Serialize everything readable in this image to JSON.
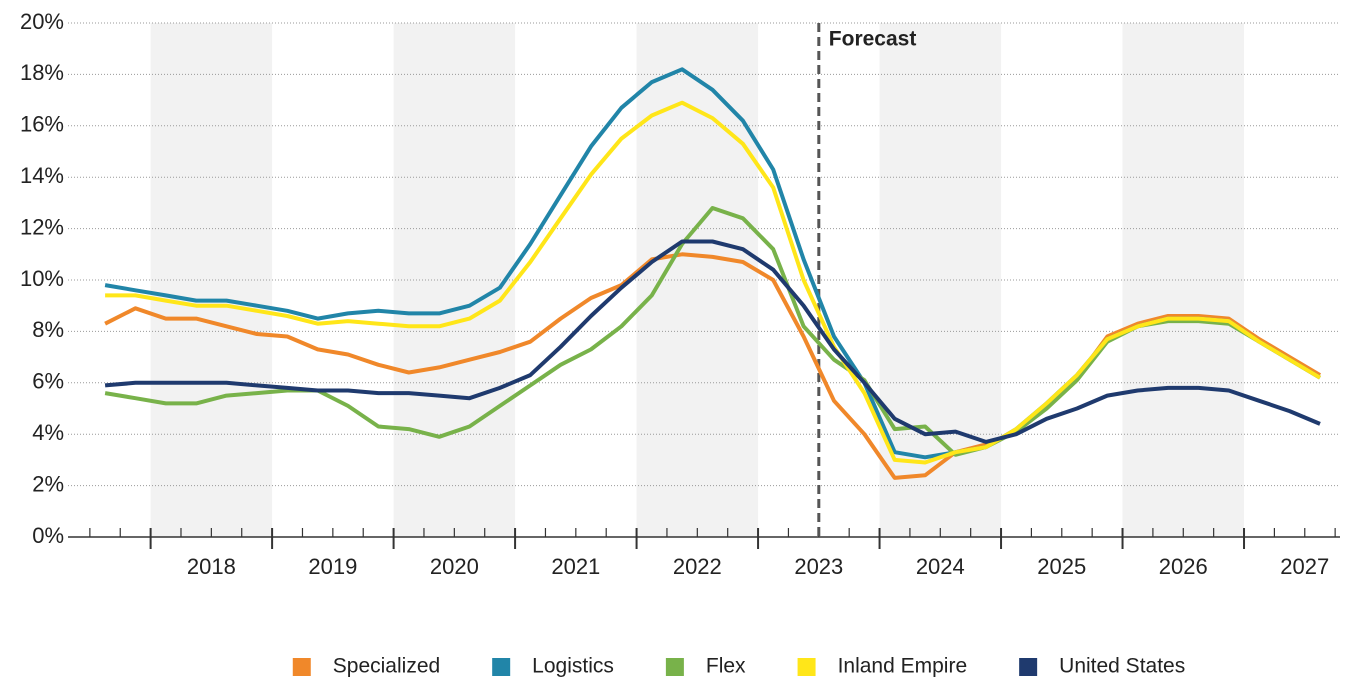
{
  "chart_data": {
    "type": "line",
    "x": [
      2017.625,
      2017.875,
      2018.125,
      2018.375,
      2018.625,
      2018.875,
      2019.125,
      2019.375,
      2019.625,
      2019.875,
      2020.125,
      2020.375,
      2020.625,
      2020.875,
      2021.125,
      2021.375,
      2021.625,
      2021.875,
      2022.125,
      2022.375,
      2022.625,
      2022.875,
      2023.125,
      2023.375,
      2023.625,
      2023.875,
      2024.125,
      2024.375,
      2024.625,
      2024.875,
      2025.125,
      2025.375,
      2025.625,
      2025.875,
      2026.125,
      2026.375,
      2026.625,
      2026.875,
      2027.125,
      2027.375,
      2027.625
    ],
    "series": [
      {
        "name": "Specialized",
        "color": "#f0882a",
        "values": [
          8.3,
          8.9,
          8.5,
          8.5,
          8.2,
          7.9,
          7.8,
          7.3,
          7.1,
          6.7,
          6.4,
          6.6,
          6.9,
          7.2,
          7.6,
          8.5,
          9.3,
          9.8,
          10.8,
          11.0,
          10.9,
          10.7,
          10.0,
          7.8,
          5.3,
          4.0,
          2.3,
          2.4,
          3.3,
          3.6,
          4.1,
          5.1,
          6.2,
          7.8,
          8.3,
          8.6,
          8.6,
          8.5,
          7.7,
          7.0,
          6.3
        ]
      },
      {
        "name": "Logistics",
        "color": "#2185a8",
        "values": [
          9.8,
          9.6,
          9.4,
          9.2,
          9.2,
          9.0,
          8.8,
          8.5,
          8.7,
          8.8,
          8.7,
          8.7,
          9.0,
          9.7,
          11.4,
          13.3,
          15.2,
          16.7,
          17.7,
          18.2,
          17.4,
          16.2,
          14.3,
          10.8,
          7.8,
          6.0,
          3.3,
          3.1,
          3.3,
          3.5,
          4.2,
          5.2,
          6.3,
          7.7,
          8.2,
          8.5,
          8.5,
          8.4,
          7.6,
          6.9,
          6.2
        ]
      },
      {
        "name": "Flex",
        "color": "#78b24a",
        "values": [
          5.6,
          5.4,
          5.2,
          5.2,
          5.5,
          5.6,
          5.7,
          5.7,
          5.1,
          4.3,
          4.2,
          3.9,
          4.3,
          5.1,
          5.9,
          6.7,
          7.3,
          8.2,
          9.4,
          11.4,
          12.8,
          12.4,
          11.2,
          8.2,
          6.9,
          6.1,
          4.2,
          4.3,
          3.2,
          3.5,
          4.1,
          5.0,
          6.1,
          7.6,
          8.2,
          8.4,
          8.4,
          8.3,
          7.6,
          6.9,
          6.2
        ]
      },
      {
        "name": "Inland Empire",
        "color": "#ffe619",
        "values": [
          9.4,
          9.4,
          9.2,
          9.0,
          9.0,
          8.8,
          8.6,
          8.3,
          8.4,
          8.3,
          8.2,
          8.2,
          8.5,
          9.2,
          10.7,
          12.4,
          14.1,
          15.5,
          16.4,
          16.9,
          16.3,
          15.3,
          13.6,
          10.0,
          7.4,
          5.6,
          3.0,
          2.9,
          3.3,
          3.5,
          4.2,
          5.2,
          6.3,
          7.7,
          8.2,
          8.5,
          8.5,
          8.4,
          7.6,
          6.9,
          6.2
        ]
      },
      {
        "name": "United States",
        "color": "#1f3a6e",
        "values": [
          5.9,
          6.0,
          6.0,
          6.0,
          6.0,
          5.9,
          5.8,
          5.7,
          5.7,
          5.6,
          5.6,
          5.5,
          5.4,
          5.8,
          6.3,
          7.4,
          8.6,
          9.7,
          10.7,
          11.5,
          11.5,
          11.2,
          10.4,
          9.0,
          7.3,
          6.0,
          4.6,
          4.0,
          4.1,
          3.7,
          4.0,
          4.6,
          5.0,
          5.5,
          5.7,
          5.8,
          5.8,
          5.7,
          5.3,
          4.9,
          4.4
        ]
      }
    ],
    "xlim": [
      2017.32,
      2027.79
    ],
    "xticks": [
      {
        "value": 2018.5,
        "label": "2018"
      },
      {
        "value": 2019.5,
        "label": "2019"
      },
      {
        "value": 2020.5,
        "label": "2020"
      },
      {
        "value": 2021.5,
        "label": "2021"
      },
      {
        "value": 2022.5,
        "label": "2022"
      },
      {
        "value": 2023.5,
        "label": "2023"
      },
      {
        "value": 2024.5,
        "label": "2024"
      },
      {
        "value": 2025.5,
        "label": "2025"
      },
      {
        "value": 2026.5,
        "label": "2026"
      },
      {
        "value": 2027.5,
        "label": "2027"
      }
    ],
    "ylim": [
      0,
      20
    ],
    "yticks": [
      {
        "value": 0,
        "label": "0%"
      },
      {
        "value": 2,
        "label": "2%"
      },
      {
        "value": 4,
        "label": "4%"
      },
      {
        "value": 6,
        "label": "6%"
      },
      {
        "value": 8,
        "label": "8%"
      },
      {
        "value": 10,
        "label": "10%"
      },
      {
        "value": 12,
        "label": "12%"
      },
      {
        "value": 14,
        "label": "14%"
      },
      {
        "value": 16,
        "label": "16%"
      },
      {
        "value": 18,
        "label": "18%"
      },
      {
        "value": 20,
        "label": "20%"
      }
    ],
    "grid": true,
    "forecast": {
      "x": 2023.5,
      "label": "Forecast"
    },
    "legend": "bottom"
  }
}
